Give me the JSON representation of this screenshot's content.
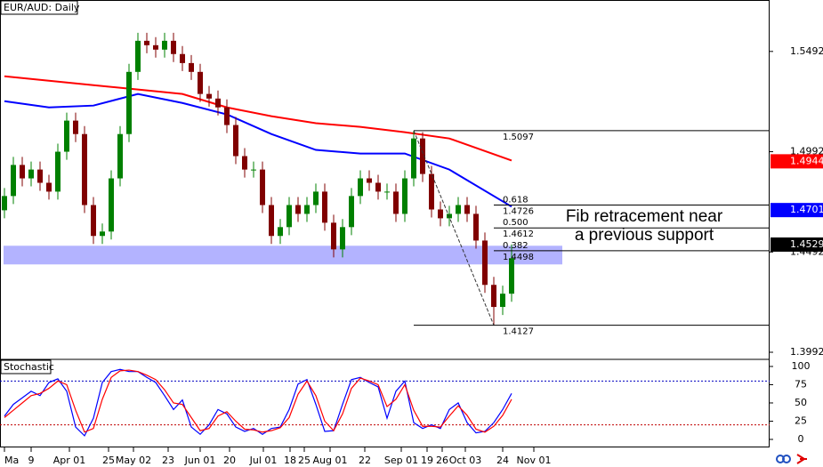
{
  "chart_data": {
    "type": "candlestick",
    "title": "EUR/AUD: Daily",
    "up_color": "#008000",
    "down_color": "#800000",
    "open": [
      1.47,
      1.4771,
      1.4926,
      1.4859,
      1.4903,
      1.4837,
      1.4793,
      1.4992,
      1.5147,
      1.508,
      1.4726,
      1.4572,
      1.4594,
      1.4859,
      1.508,
      1.539,
      1.5545,
      1.5523,
      1.5501,
      1.5545,
      1.5479,
      1.5434,
      1.539,
      1.528,
      1.5257,
      1.5213,
      1.5125,
      1.497,
      1.4903,
      1.4903,
      1.4726,
      1.4572,
      1.4616,
      1.4726,
      1.4682,
      1.4726,
      1.4793,
      1.4638,
      1.4505,
      1.4616,
      1.4771,
      1.4859,
      1.4837,
      1.4793,
      1.4793,
      1.4682,
      1.4859,
      1.5058,
      1.4881,
      1.4704,
      1.466,
      1.4682,
      1.4726,
      1.4682,
      1.4549,
      1.4328,
      1.4218,
      1.4284
    ],
    "high": [
      1.4811,
      1.4966,
      1.4966,
      1.4943,
      1.4943,
      1.4877,
      1.5032,
      1.5187,
      1.5187,
      1.512,
      1.4766,
      1.4634,
      1.4899,
      1.512,
      1.543,
      1.5585,
      1.5585,
      1.5563,
      1.5585,
      1.5585,
      1.5519,
      1.5474,
      1.543,
      1.532,
      1.5297,
      1.5253,
      1.5165,
      1.501,
      1.4943,
      1.4943,
      1.4766,
      1.4656,
      1.4766,
      1.4766,
      1.4766,
      1.4833,
      1.4833,
      1.4678,
      1.4656,
      1.4811,
      1.4899,
      1.4899,
      1.4877,
      1.4833,
      1.4833,
      1.4899,
      1.5097,
      1.509,
      1.4921,
      1.4744,
      1.4722,
      1.4766,
      1.4766,
      1.4722,
      1.4589,
      1.4368,
      1.4324,
      1.453
    ],
    "low": [
      1.466,
      1.4731,
      1.4819,
      1.4819,
      1.4797,
      1.4753,
      1.4753,
      1.4952,
      1.504,
      1.4686,
      1.4532,
      1.4532,
      1.4554,
      1.4819,
      1.504,
      1.535,
      1.5483,
      1.5461,
      1.5461,
      1.5439,
      1.5394,
      1.535,
      1.524,
      1.5217,
      1.5173,
      1.5085,
      1.493,
      1.4863,
      1.4863,
      1.4686,
      1.4532,
      1.4532,
      1.4576,
      1.4642,
      1.4642,
      1.4686,
      1.4598,
      1.4465,
      1.4465,
      1.4576,
      1.4731,
      1.4797,
      1.4753,
      1.4753,
      1.4642,
      1.4642,
      1.4819,
      1.4841,
      1.4664,
      1.462,
      1.462,
      1.4642,
      1.4642,
      1.4509,
      1.4288,
      1.4127,
      1.4178,
      1.4244
    ],
    "close": [
      1.4771,
      1.4926,
      1.4859,
      1.4903,
      1.4837,
      1.4793,
      1.4992,
      1.5147,
      1.508,
      1.4726,
      1.4572,
      1.4594,
      1.4859,
      1.508,
      1.539,
      1.5545,
      1.5523,
      1.5501,
      1.5545,
      1.5479,
      1.5434,
      1.539,
      1.528,
      1.5257,
      1.5213,
      1.5125,
      1.497,
      1.4903,
      1.4903,
      1.4726,
      1.4572,
      1.4616,
      1.4726,
      1.4682,
      1.4726,
      1.4793,
      1.4638,
      1.4505,
      1.4616,
      1.4771,
      1.4859,
      1.4837,
      1.4793,
      1.4793,
      1.4682,
      1.4859,
      1.5058,
      1.4881,
      1.4704,
      1.466,
      1.4682,
      1.4726,
      1.4682,
      1.4549,
      1.4328,
      1.4218,
      1.4284,
      1.4461
    ],
    "xlim": [
      0,
      86.5
    ],
    "xticks": [
      {
        "value": 0.5,
        "label": "Ma"
      },
      {
        "value": 3.5,
        "label": "9"
      },
      {
        "value": 7.8,
        "label": "Apr 01"
      },
      {
        "value": 12.2,
        "label": "25"
      },
      {
        "value": 15,
        "label": "May 02"
      },
      {
        "value": 18.9,
        "label": "23"
      },
      {
        "value": 22.5,
        "label": "Jun 01"
      },
      {
        "value": 25.8,
        "label": "20"
      },
      {
        "value": 29.6,
        "label": "Jul 01"
      },
      {
        "value": 32.6,
        "label": "18"
      },
      {
        "value": 34.2,
        "label": "25"
      },
      {
        "value": 37.1,
        "label": "Aug 01"
      },
      {
        "value": 41,
        "label": "22"
      },
      {
        "value": 45.1,
        "label": "Sep 01"
      },
      {
        "value": 48,
        "label": "19"
      },
      {
        "value": 49.7,
        "label": "26"
      },
      {
        "value": 52.3,
        "label": "Oct 03"
      },
      {
        "value": 56.5,
        "label": "24"
      },
      {
        "value": 60,
        "label": "Nov 01"
      }
    ],
    "ylim": [
      1.3961,
      1.5744
    ],
    "yticks": [
      1.3992,
      1.4492,
      1.4992,
      1.5492
    ],
    "moving_averages": [
      {
        "color": "#ff0000",
        "x": [
          0,
          5,
          10,
          15,
          20,
          25,
          30,
          35,
          40,
          45,
          50,
          57
        ],
        "values": [
          1.5368,
          1.5346,
          1.5324,
          1.5302,
          1.528,
          1.5213,
          1.5169,
          1.5134,
          1.5116,
          1.5089,
          1.5058,
          1.4948
        ]
      },
      {
        "color": "#0000ff",
        "x": [
          0,
          5,
          10,
          15,
          20,
          25,
          30,
          35,
          40,
          45,
          50,
          57
        ],
        "values": [
          1.5244,
          1.5213,
          1.5222,
          1.528,
          1.5235,
          1.5178,
          1.508,
          1.5001,
          1.4983,
          1.4983,
          1.4903,
          1.4718
        ]
      }
    ],
    "price_tags": [
      {
        "value": 1.4944,
        "color": "#ff0000"
      },
      {
        "value": 1.4701,
        "color": "#0000ff"
      },
      {
        "value": 1.4529,
        "color": "#000000"
      }
    ],
    "support_zone": {
      "x": [
        0,
        63.2
      ],
      "y": [
        1.443,
        1.4523
      ],
      "color": "#9999ff"
    },
    "fib": {
      "from": 46,
      "to": 55,
      "high": 1.5097,
      "low": 1.4127,
      "levels": [
        {
          "ratio": "0.618",
          "value": 1.4726
        },
        {
          "ratio": "0.500",
          "value": 1.4612
        },
        {
          "ratio": "0.382",
          "value": 1.4498
        }
      ]
    },
    "annotation": [
      "Fib retracement near",
      "a previous support"
    ],
    "indicator": {
      "type": "line",
      "title": "Stochastic",
      "ylim": [
        -11,
        108.5
      ],
      "yticks": [
        0,
        25,
        50,
        75,
        100
      ],
      "levels": [
        20,
        80
      ],
      "series": [
        {
          "color": "#0000ff",
          "values": [
            32,
            48,
            57,
            66,
            60,
            78,
            83,
            66,
            17,
            5,
            29,
            78,
            93,
            96,
            93,
            93,
            85,
            78,
            60,
            41,
            54,
            17,
            7,
            20,
            41,
            35,
            17,
            11,
            15,
            7,
            15,
            17,
            41,
            76,
            82,
            48,
            11,
            12,
            48,
            82,
            85,
            78,
            72,
            29,
            66,
            80,
            23,
            15,
            20,
            15,
            41,
            50,
            23,
            9,
            11,
            23,
            41,
            63
          ]
        },
        {
          "color": "#ff0000",
          "values": [
            30,
            40,
            50,
            60,
            63,
            70,
            80,
            75,
            40,
            10,
            15,
            55,
            85,
            94,
            95,
            93,
            88,
            82,
            68,
            50,
            48,
            30,
            12,
            15,
            32,
            38,
            25,
            14,
            13,
            10,
            12,
            16,
            30,
            62,
            80,
            60,
            25,
            12,
            35,
            70,
            84,
            80,
            75,
            45,
            55,
            75,
            40,
            18,
            18,
            17,
            32,
            46,
            33,
            14,
            10,
            18,
            33,
            55
          ]
        }
      ]
    }
  }
}
